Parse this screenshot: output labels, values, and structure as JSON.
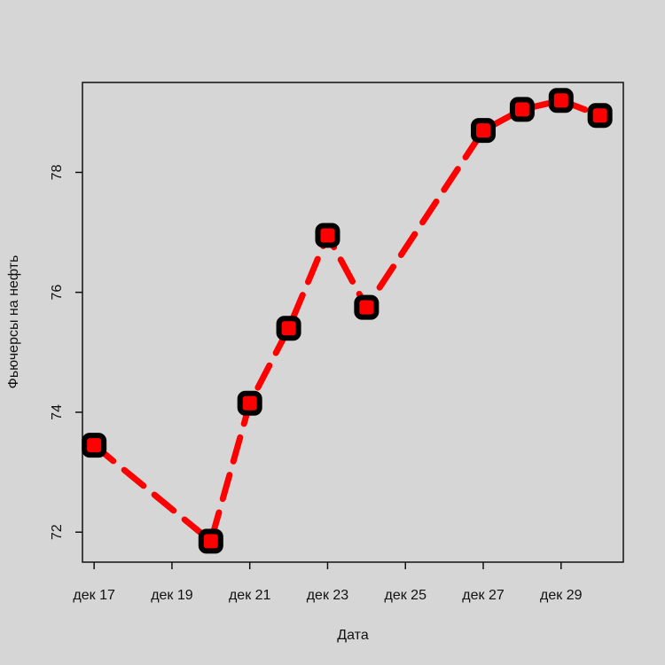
{
  "chart_data": {
    "type": "line",
    "title": "",
    "xlabel": "Дата",
    "ylabel": "Фьючерсы на нефть",
    "x_tick_labels": [
      "дек 17",
      "дек 19",
      "дек 21",
      "дек 23",
      "дек 25",
      "дек 27",
      "дек 29"
    ],
    "x_tick_days": [
      17,
      19,
      21,
      23,
      25,
      27,
      29
    ],
    "y_ticks": [
      72,
      74,
      76,
      78
    ],
    "xlim": [
      16.7,
      30.6
    ],
    "ylim": [
      71.5,
      79.5
    ],
    "series": [
      {
        "x": [
          17,
          20,
          21,
          22,
          23,
          24,
          27,
          28,
          29,
          30
        ],
        "values": [
          73.45,
          71.85,
          74.15,
          75.4,
          76.95,
          75.75,
          78.7,
          79.05,
          79.2,
          78.95
        ]
      }
    ],
    "colors": {
      "line": "#ff0000",
      "marker_outline": "#000000",
      "marker_fill": "#ff0000",
      "background": "#d6d6d6"
    },
    "line_style": "dashed",
    "marker": "square-rounded",
    "grid": false
  }
}
